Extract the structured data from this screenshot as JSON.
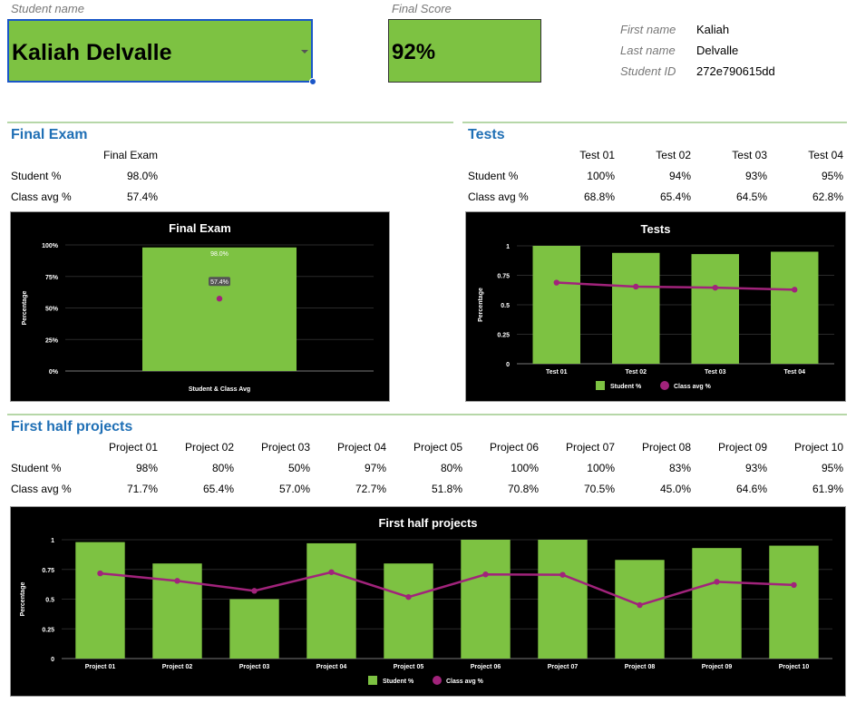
{
  "header": {
    "student_name_label": "Student name",
    "student_name_value": "Kaliah Delvalle",
    "final_score_label": "Final Score",
    "final_score_value": "92%",
    "first_name_label": "First name",
    "first_name_value": "Kaliah",
    "last_name_label": "Last name",
    "last_name_value": "Delvalle",
    "student_id_label": "Student ID",
    "student_id_value": "272e790615dd"
  },
  "final_exam": {
    "title": "Final Exam",
    "col_header": "Final Exam",
    "row_student": "Student %",
    "row_class": "Class avg %",
    "student_value": "98.0%",
    "class_value": "57.4%"
  },
  "tests": {
    "title": "Tests",
    "headers": [
      "Test 01",
      "Test 02",
      "Test 03",
      "Test 04"
    ],
    "row_student": "Student %",
    "row_class": "Class avg %",
    "student_values": [
      "100%",
      "94%",
      "93%",
      "95%"
    ],
    "class_values": [
      "68.8%",
      "65.4%",
      "64.5%",
      "62.8%"
    ]
  },
  "projects": {
    "title": "First half projects",
    "headers": [
      "Project 01",
      "Project 02",
      "Project 03",
      "Project 04",
      "Project 05",
      "Project 06",
      "Project 07",
      "Project 08",
      "Project 09",
      "Project 10"
    ],
    "row_student": "Student %",
    "row_class": "Class avg %",
    "student_values": [
      "98%",
      "80%",
      "50%",
      "97%",
      "80%",
      "100%",
      "100%",
      "83%",
      "93%",
      "95%"
    ],
    "class_values": [
      "71.7%",
      "65.4%",
      "57.0%",
      "72.7%",
      "51.8%",
      "70.8%",
      "70.5%",
      "45.0%",
      "64.6%",
      "61.9%"
    ]
  },
  "colors": {
    "bar": "#7dc242",
    "line": "#a1237b",
    "title_blue": "#1f6fb5",
    "chart_bg": "#000000"
  },
  "chart_data": [
    {
      "type": "bar",
      "title": "Final Exam",
      "categories": [
        "Student & Class Avg"
      ],
      "series": [
        {
          "name": "Student %",
          "values": [
            0.98
          ]
        },
        {
          "name": "Class avg %",
          "values": [
            0.574
          ]
        }
      ],
      "data_labels": [
        "98.0%",
        "57.4%"
      ],
      "xlabel": "Student & Class Avg",
      "ylabel": "Percentage",
      "ylim": [
        0,
        1
      ],
      "yticks": [
        "0%",
        "25%",
        "50%",
        "75%",
        "100%"
      ],
      "legend": "none"
    },
    {
      "type": "bar",
      "title": "Tests",
      "categories": [
        "Test 01",
        "Test 02",
        "Test 03",
        "Test 04"
      ],
      "series": [
        {
          "name": "Student %",
          "values": [
            1.0,
            0.94,
            0.93,
            0.95
          ]
        },
        {
          "name": "Class avg %",
          "values": [
            0.688,
            0.654,
            0.645,
            0.628
          ]
        }
      ],
      "ylabel": "Percentage",
      "ylim": [
        0,
        1
      ],
      "yticks": [
        "0",
        "0.25",
        "0.5",
        "0.75",
        "1"
      ],
      "legend": "bottom"
    },
    {
      "type": "bar",
      "title": "First half projects",
      "categories": [
        "Project 01",
        "Project 02",
        "Project 03",
        "Project 04",
        "Project 05",
        "Project 06",
        "Project 07",
        "Project 08",
        "Project 09",
        "Project 10"
      ],
      "series": [
        {
          "name": "Student %",
          "values": [
            0.98,
            0.8,
            0.5,
            0.97,
            0.8,
            1.0,
            1.0,
            0.83,
            0.93,
            0.95
          ]
        },
        {
          "name": "Class avg %",
          "values": [
            0.717,
            0.654,
            0.57,
            0.727,
            0.518,
            0.708,
            0.705,
            0.45,
            0.646,
            0.619
          ]
        }
      ],
      "ylabel": "Percentage",
      "ylim": [
        0,
        1
      ],
      "yticks": [
        "0",
        "0.25",
        "0.5",
        "0.75",
        "1"
      ],
      "legend": "bottom"
    }
  ]
}
